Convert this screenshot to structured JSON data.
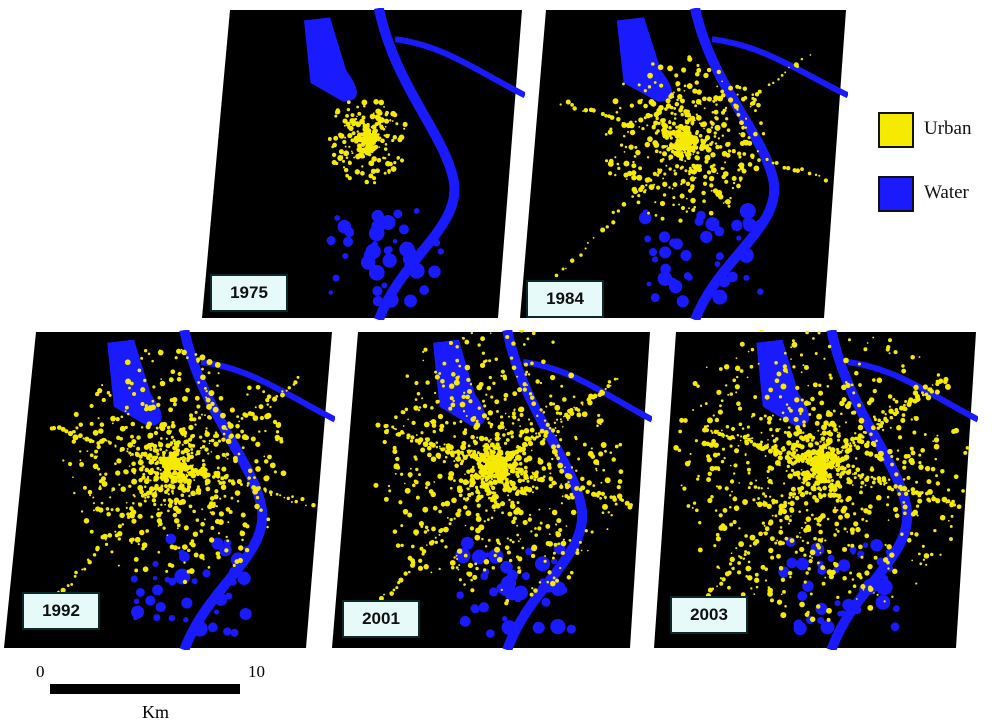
{
  "panels": [
    {
      "year": "1975",
      "urban_level": 0.15
    },
    {
      "year": "1984",
      "urban_level": 0.45
    },
    {
      "year": "1992",
      "urban_level": 0.7
    },
    {
      "year": "2001",
      "urban_level": 0.85
    },
    {
      "year": "2003",
      "urban_level": 1.0
    }
  ],
  "legend": {
    "items": [
      {
        "label": "Urban",
        "color": "#f5ea00"
      },
      {
        "label": "Water",
        "color": "#1a1aff"
      }
    ]
  },
  "scale_bar": {
    "min_label": "0",
    "max_label": "10",
    "unit": "Km"
  },
  "colors": {
    "background": "#000000",
    "urban": "#f5ea00",
    "water": "#1a1aff"
  }
}
